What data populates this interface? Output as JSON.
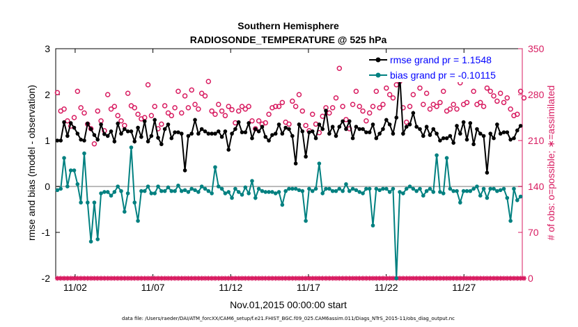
{
  "chart_data": {
    "type": "line",
    "title": "Southern Hemisphere",
    "subtitle": "RADIOSONDE_TEMPERATURE @ 525 hPa",
    "xlabel": "Nov.01,2015 00:00:00 start",
    "ylabel": "rmse and bias (model - observation)",
    "ylabel_right": "# of obs: o=possible; ∗=assimilated",
    "ylim": [
      -2,
      3
    ],
    "ylim_right": [
      0,
      350
    ],
    "xlim": [
      0.5,
      30.5
    ],
    "x_ticks": [
      1.75,
      6.75,
      11.75,
      16.75,
      21.75,
      26.75
    ],
    "x_tick_labels": [
      "11/02",
      "11/07",
      "11/12",
      "11/17",
      "11/22",
      "11/27"
    ],
    "y_ticks": [
      -2,
      -1,
      0,
      1,
      2,
      3
    ],
    "y_tick_labels": [
      "-2",
      "-1",
      "0",
      "1",
      "2",
      "3"
    ],
    "y_ticks_right": [
      0,
      70,
      140,
      210,
      280,
      350
    ],
    "y_tick_labels_right": [
      "0",
      "70",
      "140",
      "210",
      "280",
      "350"
    ],
    "zero_line": 0,
    "colors": {
      "rmse": "#000000",
      "bias": "#008080",
      "counts": "#d81b60",
      "zero": "#bbbbbb"
    },
    "legend": {
      "position": "top-right",
      "rmse_label": "rmse grand pr = 1.1548",
      "bias_label": "bias grand pr = -0.10115"
    },
    "series": [
      {
        "name": "rmse",
        "values": [
          1.0,
          1.0,
          1.4,
          1.1,
          1.38,
          1.28,
          1.15,
          1.02,
          1.0,
          1.37,
          1.25,
          1.12,
          1.02,
          1.35,
          1.14,
          1.1,
          1.2,
          0.98,
          1.37,
          1.15,
          1.25,
          1.2,
          1.2,
          0.98,
          1.28,
          1.08,
          1.42,
          0.98,
          1.1,
          1.45,
          1.06,
          0.92,
          1.25,
          1.35,
          1.05,
          1.18,
          1.18,
          1.15,
          0.35,
          1.1,
          1.15,
          1.45,
          1.15,
          1.25,
          1.2,
          1.15,
          1.15,
          1.15,
          1.2,
          1.08,
          1.2,
          0.8,
          1.15,
          1.25,
          1.4,
          1.18,
          1.18,
          1.38,
          1.05,
          1.25,
          1.2,
          1.3,
          1.08,
          1.0,
          1.12,
          1.15,
          1.35,
          1.15,
          1.28,
          1.25,
          1.1,
          0.5,
          1.35,
          1.2,
          0.65,
          1.18,
          1.2,
          1.05,
          1.35,
          1.25,
          1.65,
          1.15,
          1.3,
          1.1,
          1.3,
          1.42,
          1.25,
          1.42,
          1.05,
          1.3,
          1.25,
          1.25,
          1.18,
          1.18,
          1.35,
          1.05,
          1.15,
          1.25,
          1.45,
          1.35,
          1.15,
          1.5,
          2.42,
          1.15,
          1.3,
          1.35,
          1.6,
          1.3,
          1.25,
          1.1,
          1.3,
          1.12,
          1.25,
          1.15,
          1.0,
          1.05,
          1.05,
          1.1,
          0.95,
          1.32,
          1.15,
          1.4,
          1.02,
          1.38,
          0.92,
          1.25,
          1.15,
          1.1,
          0.3,
          1.15,
          1.05,
          1.35,
          1.15,
          1.18,
          1.18,
          1.02,
          1.05,
          1.22,
          1.32
        ]
      },
      {
        "name": "bias",
        "values": [
          -0.08,
          -0.05,
          0.62,
          0.0,
          0.35,
          0.35,
          0.05,
          -0.35,
          0.72,
          -0.35,
          -1.2,
          -0.35,
          -1.15,
          -0.15,
          -0.12,
          -0.12,
          -0.2,
          -0.12,
          0.0,
          -0.1,
          -0.55,
          -0.15,
          0.85,
          -0.35,
          -0.75,
          -0.1,
          -0.1,
          0.0,
          -0.15,
          -0.15,
          0.0,
          -0.1,
          -0.1,
          -0.02,
          -0.1,
          -0.1,
          0.02,
          -0.1,
          -0.08,
          -0.12,
          -0.05,
          -0.08,
          -0.12,
          0.0,
          -0.05,
          -0.1,
          -0.15,
          0.42,
          0.0,
          -0.05,
          -0.15,
          -0.12,
          -0.25,
          -0.05,
          -0.12,
          -0.18,
          -0.02,
          -0.15,
          0.12,
          -0.25,
          -0.05,
          -0.1,
          -0.12,
          -0.12,
          -0.12,
          -0.15,
          -0.12,
          -0.4,
          -0.1,
          -0.05,
          -0.05,
          -0.05,
          -0.08,
          -0.1,
          -0.75,
          -0.05,
          -0.1,
          -0.05,
          0.5,
          -0.15,
          -0.05,
          -0.05,
          -0.1,
          -0.1,
          -0.05,
          -0.1,
          0.05,
          -0.1,
          -0.05,
          -0.08,
          -0.12,
          -0.15,
          -0.05,
          -0.05,
          -0.85,
          -0.05,
          -0.08,
          -0.05,
          -0.05,
          -0.12,
          -0.05,
          -2.0,
          -0.12,
          -0.15,
          -0.05,
          0.0,
          -0.05,
          -0.1,
          -0.05,
          -0.2,
          -0.1,
          -0.05,
          -0.12,
          0.68,
          -0.12,
          -0.15,
          0.62,
          -0.05,
          -0.1,
          -0.1,
          -0.35,
          -0.1,
          -0.1,
          -0.1,
          -0.05,
          0.0,
          -0.2,
          -0.05,
          -0.25,
          -0.05,
          -0.05,
          -0.1,
          -0.08,
          -0.05,
          -0.25,
          -0.75,
          -0.05,
          -0.3,
          -0.22
        ]
      }
    ],
    "obs_possible": [
      283,
      255,
      258,
      240,
      232,
      245,
      285,
      260,
      252,
      235,
      228,
      205,
      255,
      240,
      225,
      280,
      258,
      262,
      248,
      240,
      233,
      282,
      263,
      260,
      250,
      243,
      245,
      295,
      248,
      262,
      228,
      235,
      263,
      252,
      248,
      260,
      285,
      252,
      278,
      260,
      287,
      265,
      258,
      282,
      278,
      300,
      255,
      250,
      265,
      255,
      248,
      262,
      257,
      237,
      255,
      262,
      258,
      262,
      240,
      228,
      240,
      235,
      237,
      250,
      260,
      262,
      262,
      268,
      238,
      235,
      270,
      262,
      280,
      255,
      233,
      225,
      250,
      235,
      222,
      247,
      260,
      252,
      260,
      275,
      320,
      262,
      242,
      228,
      265,
      285,
      262,
      255,
      240,
      252,
      262,
      285,
      260,
      265,
      290,
      280,
      275,
      295,
      300,
      260,
      238,
      262,
      280,
      318,
      290,
      265,
      282,
      258,
      265,
      262,
      268,
      285,
      255,
      258,
      265,
      258,
      298,
      265,
      268,
      310,
      285,
      265,
      268,
      262,
      290,
      285,
      278,
      270,
      282,
      268,
      275,
      258,
      248,
      250,
      285,
      275
    ],
    "obs_assimilated": [
      0,
      0,
      0,
      0,
      0,
      0,
      0,
      0,
      0,
      0,
      0,
      0,
      0,
      0,
      0,
      0,
      0,
      0,
      0,
      0,
      0,
      0,
      0,
      0,
      0,
      0,
      0,
      0,
      0,
      0,
      0,
      0,
      0,
      0,
      0,
      0,
      0,
      0,
      0,
      0,
      0,
      0,
      0,
      0,
      0,
      0,
      0,
      0,
      0,
      0,
      0,
      0,
      0,
      0,
      0,
      0,
      0,
      0,
      0,
      0,
      0,
      0,
      0,
      0,
      0,
      0,
      0,
      0,
      0,
      0,
      0,
      0,
      0,
      0,
      0,
      0,
      0,
      0,
      0,
      0,
      0,
      0,
      0,
      0,
      0,
      0,
      0,
      0,
      0,
      0,
      0,
      0,
      0,
      0,
      0,
      0,
      0,
      0,
      0,
      0,
      0,
      0,
      0,
      0,
      0,
      0,
      0,
      0,
      0,
      0,
      0,
      0,
      0,
      0,
      0,
      0,
      0,
      0,
      0,
      0,
      0,
      0,
      0,
      0,
      0,
      0,
      0,
      0,
      0,
      0,
      0,
      0,
      0,
      0,
      0,
      0,
      0,
      0,
      0,
      0
    ]
  },
  "footer": "data file: /Users/raeder/DAI/ATM_forcXX/CAM6_setup/f.e21.FHIST_BGC.f09_025.CAM6assim.011/Diags_NTrS_2015-11/obs_diag_output.nc"
}
